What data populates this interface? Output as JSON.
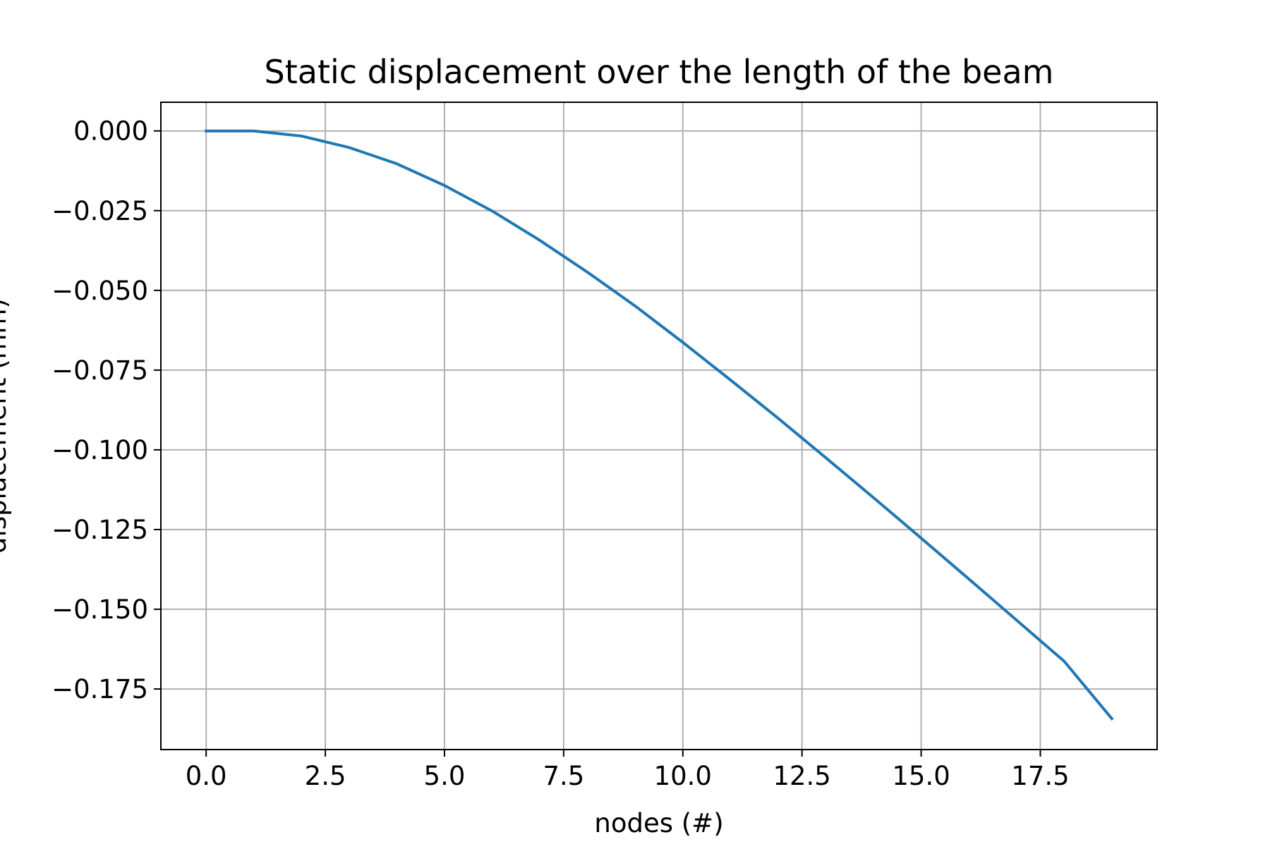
{
  "chart_data": {
    "type": "line",
    "title": "Static displacement over the length of the beam",
    "xlabel": "nodes (#)",
    "ylabel": "displacement (mm)",
    "xlim": [
      -0.95,
      19.95
    ],
    "ylim": [
      -0.194,
      0.009
    ],
    "grid": true,
    "x_ticks": [
      0.0,
      2.5,
      5.0,
      7.5,
      10.0,
      12.5,
      15.0,
      17.5
    ],
    "x_tick_labels": [
      "0.0",
      "2.5",
      "5.0",
      "7.5",
      "10.0",
      "12.5",
      "15.0",
      "17.5"
    ],
    "y_ticks": [
      0.0,
      -0.025,
      -0.05,
      -0.075,
      -0.1,
      -0.125,
      -0.15,
      -0.175
    ],
    "y_tick_labels": [
      "0.000",
      "−0.025",
      "−0.050",
      "−0.075",
      "−0.100",
      "−0.125",
      "−0.150",
      "−0.175"
    ],
    "series": [
      {
        "color": "#1f77b4",
        "x": [
          0,
          1,
          2,
          3,
          4,
          5,
          6,
          7,
          8,
          9,
          10,
          11,
          12,
          13,
          14,
          15,
          16,
          17,
          18,
          19
        ],
        "y": [
          0.0,
          0.0,
          -0.0016,
          -0.0052,
          -0.0103,
          -0.0171,
          -0.0251,
          -0.0343,
          -0.0443,
          -0.0549,
          -0.0663,
          -0.0781,
          -0.0901,
          -0.1025,
          -0.115,
          -0.1277,
          -0.1405,
          -0.1534,
          -0.1663,
          -0.1843
        ]
      }
    ]
  }
}
